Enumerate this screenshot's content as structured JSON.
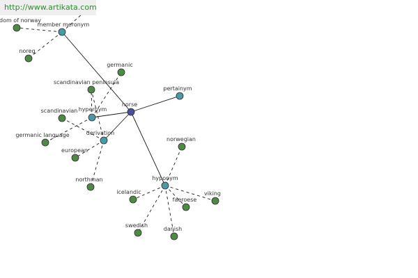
{
  "banner": {
    "url_text": "http://www.artikata.com",
    "url_color": "#2e8b2e"
  },
  "colors": {
    "center_node": "#4a4f9a",
    "relation_node": "#4a9aa6",
    "word_node": "#4e8a45",
    "node_stroke": "#2b2b2b",
    "solid_edge": "#1a1a1a",
    "dashed_edge": "#1a1a1a"
  },
  "nodes": {
    "norse": {
      "label": "norse",
      "kind": "center"
    },
    "member_meronym": {
      "label": "member meronym",
      "kind": "relation"
    },
    "hypernym": {
      "label": "hypernym",
      "kind": "relation"
    },
    "derivation": {
      "label": "derivation",
      "kind": "relation"
    },
    "pertainym": {
      "label": "pertainym",
      "kind": "relation"
    },
    "hyponym": {
      "label": "hyponym",
      "kind": "relation"
    },
    "kingdom_of_norway": {
      "label": "dom of norway",
      "kind": "word"
    },
    "noreg": {
      "label": "noreg",
      "kind": "word"
    },
    "germanic": {
      "label": "germanic",
      "kind": "word"
    },
    "scandinavian_peninsula": {
      "label": "scandinavian peninsula",
      "kind": "word"
    },
    "scandinavian": {
      "label": "scandinavian",
      "kind": "word"
    },
    "germanic_language": {
      "label": "germanic language",
      "kind": "word"
    },
    "european": {
      "label": "european",
      "kind": "word"
    },
    "northman": {
      "label": "northman",
      "kind": "word"
    },
    "norwegian": {
      "label": "norwegian",
      "kind": "word"
    },
    "icelandic": {
      "label": "icelandic",
      "kind": "word"
    },
    "faeroese": {
      "label": "faeroese",
      "kind": "word"
    },
    "viking": {
      "label": "viking",
      "kind": "word"
    },
    "swedish": {
      "label": "swedish",
      "kind": "word"
    },
    "danish": {
      "label": "danish",
      "kind": "word"
    }
  },
  "edges": [
    {
      "from": "norse",
      "to": "member_meronym",
      "style": "solid"
    },
    {
      "from": "norse",
      "to": "hypernym",
      "style": "solid"
    },
    {
      "from": "norse",
      "to": "derivation",
      "style": "solid"
    },
    {
      "from": "norse",
      "to": "pertainym",
      "style": "solid"
    },
    {
      "from": "norse",
      "to": "hyponym",
      "style": "solid"
    },
    {
      "from": "member_meronym",
      "to": "kingdom_of_norway",
      "style": "dashed"
    },
    {
      "from": "member_meronym",
      "to": "noreg",
      "style": "dashed"
    },
    {
      "from": "member_meronym",
      "to": "banner_corner",
      "style": "dashed"
    },
    {
      "from": "hypernym",
      "to": "germanic",
      "style": "dashed"
    },
    {
      "from": "hypernym",
      "to": "scandinavian_peninsula",
      "style": "dashed"
    },
    {
      "from": "hypernym",
      "to": "germanic_language",
      "style": "dashed"
    },
    {
      "from": "derivation",
      "to": "scandinavian",
      "style": "dashed"
    },
    {
      "from": "derivation",
      "to": "scandinavian_peninsula",
      "style": "dashed"
    },
    {
      "from": "derivation",
      "to": "european",
      "style": "dashed"
    },
    {
      "from": "derivation",
      "to": "northman",
      "style": "dashed"
    },
    {
      "from": "hyponym",
      "to": "norwegian",
      "style": "dashed"
    },
    {
      "from": "hyponym",
      "to": "icelandic",
      "style": "dashed"
    },
    {
      "from": "hyponym",
      "to": "faeroese",
      "style": "dashed"
    },
    {
      "from": "hyponym",
      "to": "viking",
      "style": "dashed"
    },
    {
      "from": "hyponym",
      "to": "swedish",
      "style": "dashed"
    },
    {
      "from": "hyponym",
      "to": "danish",
      "style": "dashed"
    }
  ]
}
